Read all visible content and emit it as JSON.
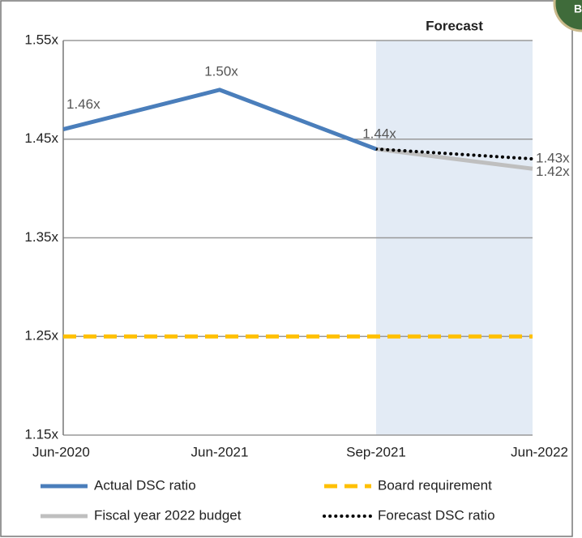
{
  "chart_data": {
    "type": "line",
    "badge": "B",
    "forecast_label": "Forecast",
    "shaded_from": "Sep-2021",
    "categories": [
      "Jun-2020",
      "Jun-2021",
      "Sep-2021",
      "Jun-2022"
    ],
    "ylim": [
      1.15,
      1.55
    ],
    "yticks": [
      {
        "value": 1.15,
        "label": "1.15x"
      },
      {
        "value": 1.25,
        "label": "1.25x"
      },
      {
        "value": 1.35,
        "label": "1.35x"
      },
      {
        "value": 1.45,
        "label": "1.45x"
      },
      {
        "value": 1.55,
        "label": "1.55x"
      }
    ],
    "grid": true,
    "series": [
      {
        "name": "Board requirement",
        "color": "#ffc000",
        "style": "dashed",
        "values": [
          1.25,
          1.25,
          1.25,
          1.25
        ]
      },
      {
        "name": "Fiscal year 2022 budget",
        "color": "#bfbfbf",
        "style": "solid",
        "values": [
          null,
          null,
          1.44,
          1.42
        ],
        "value_labels": [
          null,
          null,
          null,
          "1.42x"
        ]
      },
      {
        "name": "Forecast DSC ratio",
        "color": "#000000",
        "style": "dotted",
        "values": [
          null,
          null,
          1.44,
          1.43
        ],
        "value_labels": [
          null,
          null,
          null,
          "1.43x"
        ]
      },
      {
        "name": "Actual DSC ratio",
        "color": "#4a7ebb",
        "style": "solid",
        "values": [
          1.46,
          1.5,
          1.44,
          null
        ],
        "value_labels": [
          "1.46x",
          "1.50x",
          "1.44x",
          null
        ]
      }
    ]
  }
}
